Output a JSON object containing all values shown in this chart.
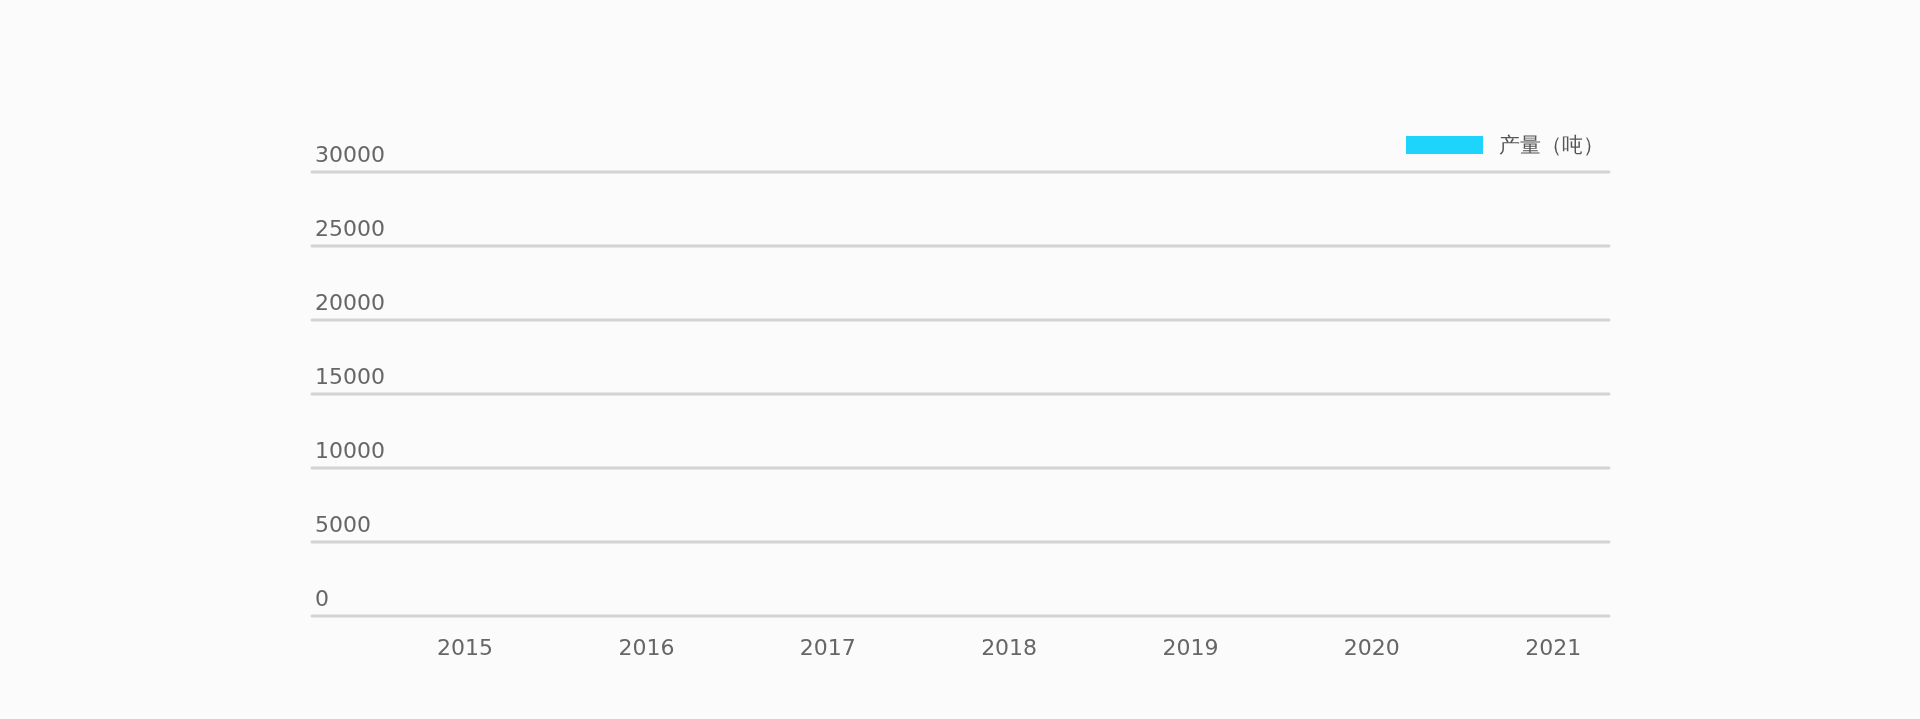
{
  "chart_data": {
    "type": "bar",
    "categories": [
      "2015",
      "2016",
      "2017",
      "2018",
      "2019",
      "2020",
      "2021"
    ],
    "series": [
      {
        "name": "产量（吨）",
        "color": "#1fd4fc",
        "values": [
          null,
          null,
          null,
          null,
          null,
          null,
          null
        ]
      }
    ],
    "ylim": [
      0,
      30000
    ],
    "yticks": [
      0,
      5000,
      10000,
      15000,
      20000,
      25000,
      30000
    ],
    "grid": "y",
    "legend": "top right"
  }
}
